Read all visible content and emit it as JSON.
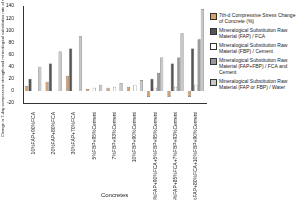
{
  "chart_data": {
    "type": "bar",
    "y_label": "Change in 7-day compressive strength and mineralogical substitution rate of raw material (%)",
    "x_label": "Concretes",
    "categories": [
      "10%FAP+90%FCA",
      "20%FAP+80%FCA",
      "30%FAP+70%FCA",
      "5%FBP+95%Cement",
      "7%FBP+93%Cement",
      "10%FBP+90%Cement",
      "10%FAP+90%FCA+5%FBP+95%Cement",
      "15%FAP+85%FCA+7%FBP+93%Cement",
      "20%FAP+80%FCA+10%FBP+90%Cement"
    ],
    "series": [
      {
        "name": "7th-d Compressive Stress Change of Concrete (%)",
        "color": "#d9a06b",
        "values": [
          8,
          15,
          25,
          3,
          5,
          7,
          -10,
          -10,
          -10
        ]
      },
      {
        "name": "Mineralogical Substitution Raw Material (FAP) / FCA",
        "color": "#555555",
        "values": [
          20,
          45,
          70,
          null,
          null,
          null,
          20,
          45,
          70
        ]
      },
      {
        "name": "Mineralogical Substitution Raw Material (FBP) / Cement",
        "color": "#ffffff",
        "values": [
          null,
          null,
          null,
          5,
          7,
          10,
          5,
          7,
          10
        ]
      },
      {
        "name": "Mineralogical Substitution Raw Material (FAP+FBP) / FCA and Cement",
        "color": "#999999",
        "values": [
          null,
          null,
          null,
          null,
          null,
          null,
          30,
          55,
          85
        ]
      },
      {
        "name": "Mineralogical Substitution Raw Material (FAP or FBP) / Water",
        "color": "#c8c8c8",
        "values": [
          40,
          65,
          90,
          10,
          13,
          18,
          55,
          95,
          135
        ]
      }
    ],
    "ylim": [
      -20,
      140
    ],
    "yticks": [
      -20,
      0,
      20,
      40,
      60,
      80,
      100,
      120,
      140
    ],
    "grid": false,
    "legend": "right"
  }
}
